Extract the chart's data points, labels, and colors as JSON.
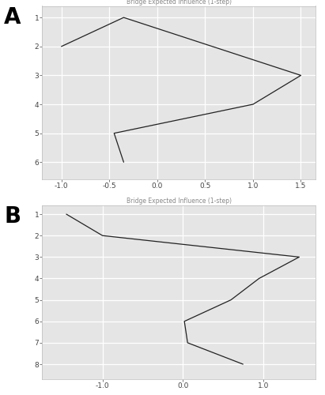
{
  "panel_A": {
    "title": "Bridge Expected Influence (1-step)",
    "line_x": [
      -1.0,
      -0.35,
      1.5,
      1.0,
      -0.45,
      -0.35
    ],
    "line_y": [
      2,
      1,
      3,
      4,
      5,
      6
    ],
    "xlim": [
      -1.2,
      1.65
    ],
    "ylim": [
      6.6,
      0.6
    ],
    "xticks": [
      -1.0,
      -0.5,
      0.0,
      0.5,
      1.0,
      1.5
    ],
    "xtick_labels": [
      "-1.0",
      "-0.5",
      "0.0",
      "0.5",
      "1.0",
      "1.5"
    ],
    "yticks": [
      1,
      2,
      3,
      4,
      5,
      6
    ],
    "ytick_labels": [
      "1",
      "2",
      "3",
      "4",
      "5",
      "6"
    ],
    "label": "A"
  },
  "panel_B": {
    "title": "Bridge Expected Influence (1-step)",
    "line_x": [
      -1.45,
      -1.0,
      1.45,
      0.95,
      0.6,
      0.02,
      0.06,
      0.75
    ],
    "line_y": [
      1,
      2,
      3,
      4,
      5,
      6,
      7,
      8
    ],
    "xlim": [
      -1.75,
      1.65
    ],
    "ylim": [
      8.7,
      0.6
    ],
    "xticks": [
      -1.0,
      0.0,
      1.0
    ],
    "xtick_labels": [
      "-1.0",
      "0.0",
      "1.0"
    ],
    "yticks": [
      1,
      2,
      3,
      4,
      5,
      6,
      7,
      8
    ],
    "ytick_labels": [
      "1",
      "2",
      "3",
      "4",
      "5",
      "6",
      "7",
      "8"
    ],
    "label": "B"
  },
  "bg_color": "#e5e5e5",
  "fig_bg_color": "#ffffff",
  "line_color": "#222222",
  "grid_color": "#ffffff",
  "line_width": 0.9,
  "label_fontsize": 20,
  "title_fontsize": 5.5,
  "tick_fontsize": 6.5,
  "tick_color": "#444444",
  "title_color": "#888888"
}
